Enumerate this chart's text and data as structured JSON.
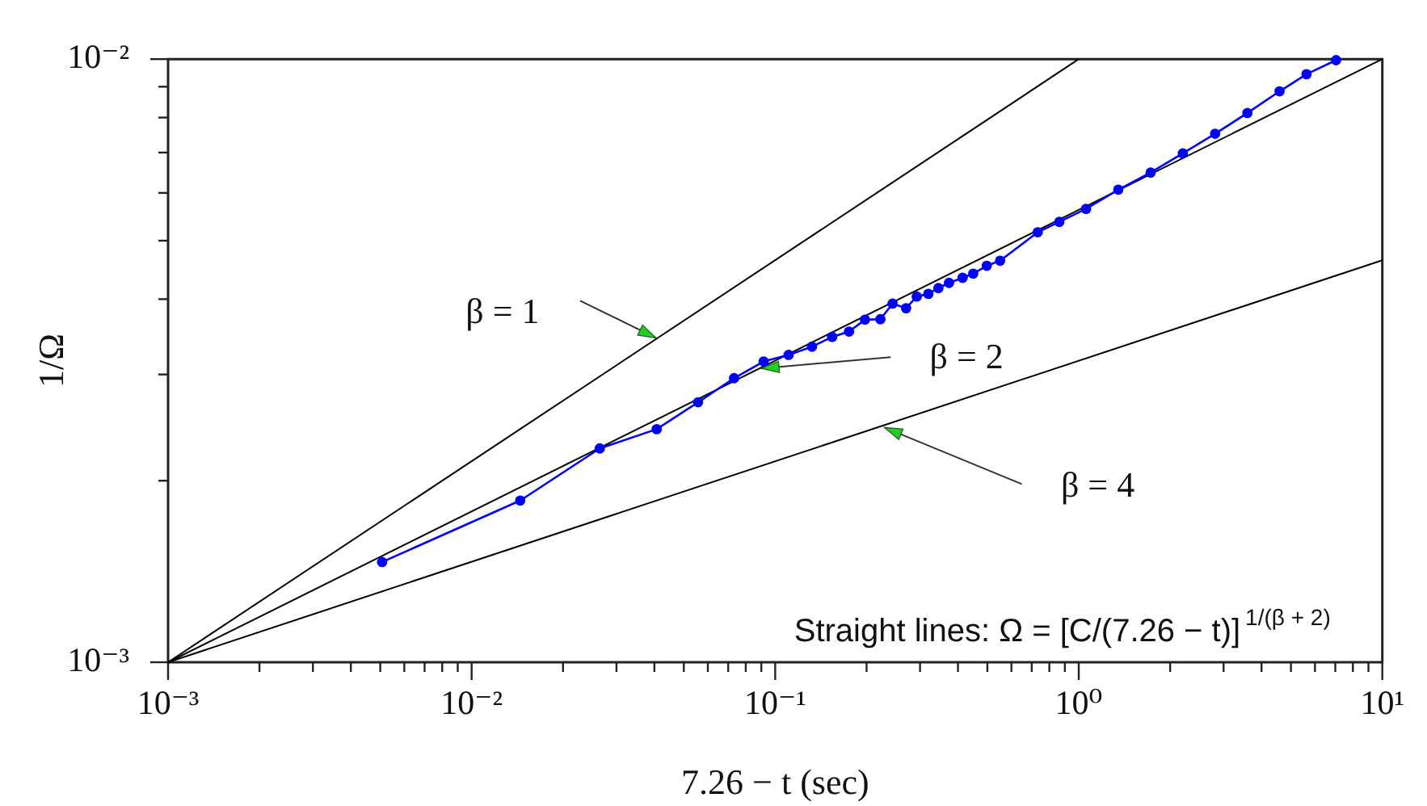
{
  "chart_data": {
    "type": "line",
    "xlabel": "7.26 − t (sec)",
    "ylabel": "1/Ω",
    "log": "xy",
    "xlim": [
      0.001,
      10
    ],
    "ylim": [
      0.001,
      0.01
    ],
    "xticks": [
      {
        "value": 0.001,
        "label": "10⁻³"
      },
      {
        "value": 0.002,
        "label": null
      },
      {
        "value": 0.003,
        "label": null
      },
      {
        "value": 0.004,
        "label": null
      },
      {
        "value": 0.005,
        "label": null
      },
      {
        "value": 0.006,
        "label": null
      },
      {
        "value": 0.007,
        "label": null
      },
      {
        "value": 0.008,
        "label": null
      },
      {
        "value": 0.009,
        "label": null
      },
      {
        "value": 0.01,
        "label": "10⁻²"
      },
      {
        "value": 0.02,
        "label": null
      },
      {
        "value": 0.03,
        "label": null
      },
      {
        "value": 0.04,
        "label": null
      },
      {
        "value": 0.05,
        "label": null
      },
      {
        "value": 0.06,
        "label": null
      },
      {
        "value": 0.07,
        "label": null
      },
      {
        "value": 0.08,
        "label": null
      },
      {
        "value": 0.09,
        "label": null
      },
      {
        "value": 0.1,
        "label": "10⁻¹"
      },
      {
        "value": 0.2,
        "label": null
      },
      {
        "value": 0.3,
        "label": null
      },
      {
        "value": 0.4,
        "label": null
      },
      {
        "value": 0.5,
        "label": null
      },
      {
        "value": 0.6,
        "label": null
      },
      {
        "value": 0.7,
        "label": null
      },
      {
        "value": 0.8,
        "label": null
      },
      {
        "value": 0.9,
        "label": null
      },
      {
        "value": 1,
        "label": "10⁰"
      },
      {
        "value": 2,
        "label": null
      },
      {
        "value": 3,
        "label": null
      },
      {
        "value": 4,
        "label": null
      },
      {
        "value": 5,
        "label": null
      },
      {
        "value": 6,
        "label": null
      },
      {
        "value": 7,
        "label": null
      },
      {
        "value": 8,
        "label": null
      },
      {
        "value": 9,
        "label": null
      },
      {
        "value": 10,
        "label": "10¹"
      }
    ],
    "yticks": [
      {
        "value": 0.001,
        "label": "10⁻³"
      },
      {
        "value": 0.002,
        "label": null
      },
      {
        "value": 0.003,
        "label": null
      },
      {
        "value": 0.004,
        "label": null
      },
      {
        "value": 0.005,
        "label": null
      },
      {
        "value": 0.006,
        "label": null
      },
      {
        "value": 0.007,
        "label": null
      },
      {
        "value": 0.008,
        "label": null
      },
      {
        "value": 0.009,
        "label": null
      },
      {
        "value": 0.01,
        "label": "10⁻²"
      }
    ],
    "series": [
      {
        "color": "#0000ff",
        "marker": "circle",
        "x": [
          0.00507,
          0.01446,
          0.02643,
          0.04071,
          0.0557,
          0.0732,
          0.0916,
          0.1107,
          0.1322,
          0.154,
          0.1751,
          0.1976,
          0.2221,
          0.2436,
          0.2699,
          0.2927,
          0.3196,
          0.3449,
          0.3737,
          0.4144,
          0.4491,
          0.4977,
          0.5508,
          0.7325,
          0.863,
          1.057,
          1.35,
          1.725,
          2.202,
          2.813,
          3.594,
          4.587,
          5.627,
          7.04
        ],
        "values": [
          0.001466,
          0.001854,
          0.002262,
          0.002435,
          0.002698,
          0.002958,
          0.003153,
          0.003233,
          0.003336,
          0.003463,
          0.003534,
          0.003698,
          0.003705,
          0.003932,
          0.003864,
          0.00404,
          0.004081,
          0.004172,
          0.004256,
          0.004339,
          0.004409,
          0.004543,
          0.004632,
          0.005164,
          0.005373,
          0.005646,
          0.006075,
          0.006484,
          0.006977,
          0.007521,
          0.00814,
          0.008844,
          0.009441,
          0.00996
        ]
      },
      {
        "color": "#000000",
        "marker": "none",
        "x": [
          0.001,
          1
        ],
        "values": [
          0.001,
          0.01
        ]
      },
      {
        "color": "#000000",
        "marker": "none",
        "x": [
          0.001,
          10
        ],
        "values": [
          0.001,
          0.01
        ]
      },
      {
        "color": "#000000",
        "marker": "none",
        "x": [
          0.001,
          10
        ],
        "values": [
          0.001,
          0.00464
        ]
      }
    ],
    "annotations": [
      {
        "text": "β = 1",
        "x": 0.0405,
        "y": 0.00345
      },
      {
        "text": "β = 2",
        "x": 0.09,
        "y": 0.00307
      },
      {
        "text": "β = 4",
        "x": 0.229,
        "y": 0.00245
      },
      "Straight lines: Ω = [C/(7.26 − t)]$^{1/(β + 2)}$"
    ]
  }
}
